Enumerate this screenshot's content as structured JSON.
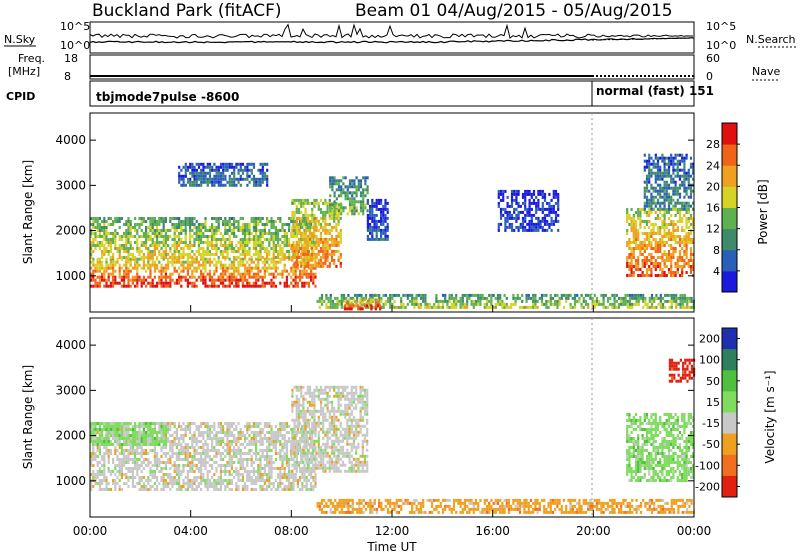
{
  "header": {
    "title": "Buckland Park (fitACF)",
    "beam_dates": "Beam 01  04/Aug/2015 - 05/Aug/2015"
  },
  "strips": {
    "nsky_label": "N.Sky",
    "nsearch_label": "N.Search",
    "freq_label_1": "Freq.",
    "freq_label_2": "[MHz]",
    "nave_label": "Nave",
    "cpid_label": "CPID",
    "noise_ticks": [
      "10^5",
      "10^0"
    ],
    "freq_ticks": [
      "18",
      "8"
    ],
    "nave_ticks": [
      "60",
      "0"
    ],
    "cpid_segments": [
      {
        "text": "tbjmode7pulse -8600",
        "start_hour": 0,
        "end_hour": 20
      },
      {
        "text": "normal (fast)  151",
        "start_hour": 20,
        "end_hour": 24
      }
    ]
  },
  "xaxis": {
    "label": "Time UT",
    "ticks": [
      "00:00",
      "04:00",
      "08:00",
      "12:00",
      "16:00",
      "20:00",
      "00:00"
    ]
  },
  "chart_data": [
    {
      "type": "heatmap",
      "name": "power",
      "ylabel": "Slant Range [km]",
      "x_range_hours": [
        0,
        24
      ],
      "ylim": [
        200,
        4600
      ],
      "yticks": [
        "1000",
        "2000",
        "3000",
        "4000"
      ],
      "colorbar": {
        "label": "Power [dB]",
        "ticks": [
          "4",
          "8",
          "12",
          "16",
          "20",
          "24",
          "28"
        ],
        "range": [
          0,
          32
        ],
        "colors": [
          "#1a1adc",
          "#2a5fb8",
          "#3f8a6a",
          "#5fb050",
          "#d6d226",
          "#f0a020",
          "#f06418",
          "#e01010"
        ]
      },
      "echo_regions": [
        {
          "start_hour": 0.0,
          "end_hour": 9.0,
          "range_min_km": 800,
          "range_max_km": 1400,
          "level": 0.92
        },
        {
          "start_hour": 0.0,
          "end_hour": 9.0,
          "range_min_km": 1400,
          "range_max_km": 2300,
          "level": 0.62
        },
        {
          "start_hour": 3.5,
          "end_hour": 7.0,
          "range_min_km": 3000,
          "range_max_km": 3500,
          "level": 0.25
        },
        {
          "start_hour": 8.0,
          "end_hour": 10.0,
          "range_min_km": 1200,
          "range_max_km": 2700,
          "level": 0.78
        },
        {
          "start_hour": 9.5,
          "end_hour": 11.0,
          "range_min_km": 2400,
          "range_max_km": 3200,
          "level": 0.45
        },
        {
          "start_hour": 9.0,
          "end_hour": 24.0,
          "range_min_km": 300,
          "range_max_km": 600,
          "level": 0.55
        },
        {
          "start_hour": 10.0,
          "end_hour": 11.5,
          "range_min_km": 300,
          "range_max_km": 500,
          "level": 0.95
        },
        {
          "start_hour": 11.0,
          "end_hour": 11.8,
          "range_min_km": 1800,
          "range_max_km": 2700,
          "level": 0.15
        },
        {
          "start_hour": 16.2,
          "end_hour": 18.6,
          "range_min_km": 2000,
          "range_max_km": 2900,
          "level": 0.12
        },
        {
          "start_hour": 21.3,
          "end_hour": 24.0,
          "range_min_km": 1000,
          "range_max_km": 2500,
          "level": 0.85
        },
        {
          "start_hour": 22.0,
          "end_hour": 24.0,
          "range_min_km": 2500,
          "range_max_km": 3700,
          "level": 0.3
        }
      ]
    },
    {
      "type": "heatmap",
      "name": "velocity",
      "ylabel": "Slant Range [km]",
      "x_range_hours": [
        0,
        24
      ],
      "ylim": [
        200,
        4600
      ],
      "yticks": [
        "1000",
        "2000",
        "3000",
        "4000"
      ],
      "colorbar": {
        "label": "Velocity [m s⁻¹]",
        "ticks": [
          "200",
          "100",
          "50",
          "15",
          "-15",
          "-50",
          "-100",
          "-200"
        ],
        "colors": [
          "#1f2fb0",
          "#2f7f5f",
          "#4fbf3f",
          "#7fdc5f",
          "#c8c8c8",
          "#f0a020",
          "#f07020",
          "#e02010"
        ]
      },
      "echo_regions": [
        {
          "start_hour": 0.0,
          "end_hour": 9.0,
          "range_min_km": 800,
          "range_max_km": 2300,
          "velocity_class": "-15 to 15"
        },
        {
          "start_hour": 0.0,
          "end_hour": 3.0,
          "range_min_km": 1800,
          "range_max_km": 2300,
          "velocity_class": "15 to 50"
        },
        {
          "start_hour": 8.0,
          "end_hour": 11.0,
          "range_min_km": 1200,
          "range_max_km": 3100,
          "velocity_class": "-15 to 15"
        },
        {
          "start_hour": 9.0,
          "end_hour": 24.0,
          "range_min_km": 300,
          "range_max_km": 600,
          "velocity_class": "-50 to -15"
        },
        {
          "start_hour": 21.3,
          "end_hour": 24.0,
          "range_min_km": 1000,
          "range_max_km": 2500,
          "velocity_class": "15 to 50"
        },
        {
          "start_hour": 23.0,
          "end_hour": 24.0,
          "range_min_km": 3200,
          "range_max_km": 3700,
          "velocity_class": "-200 to -100"
        }
      ]
    }
  ]
}
